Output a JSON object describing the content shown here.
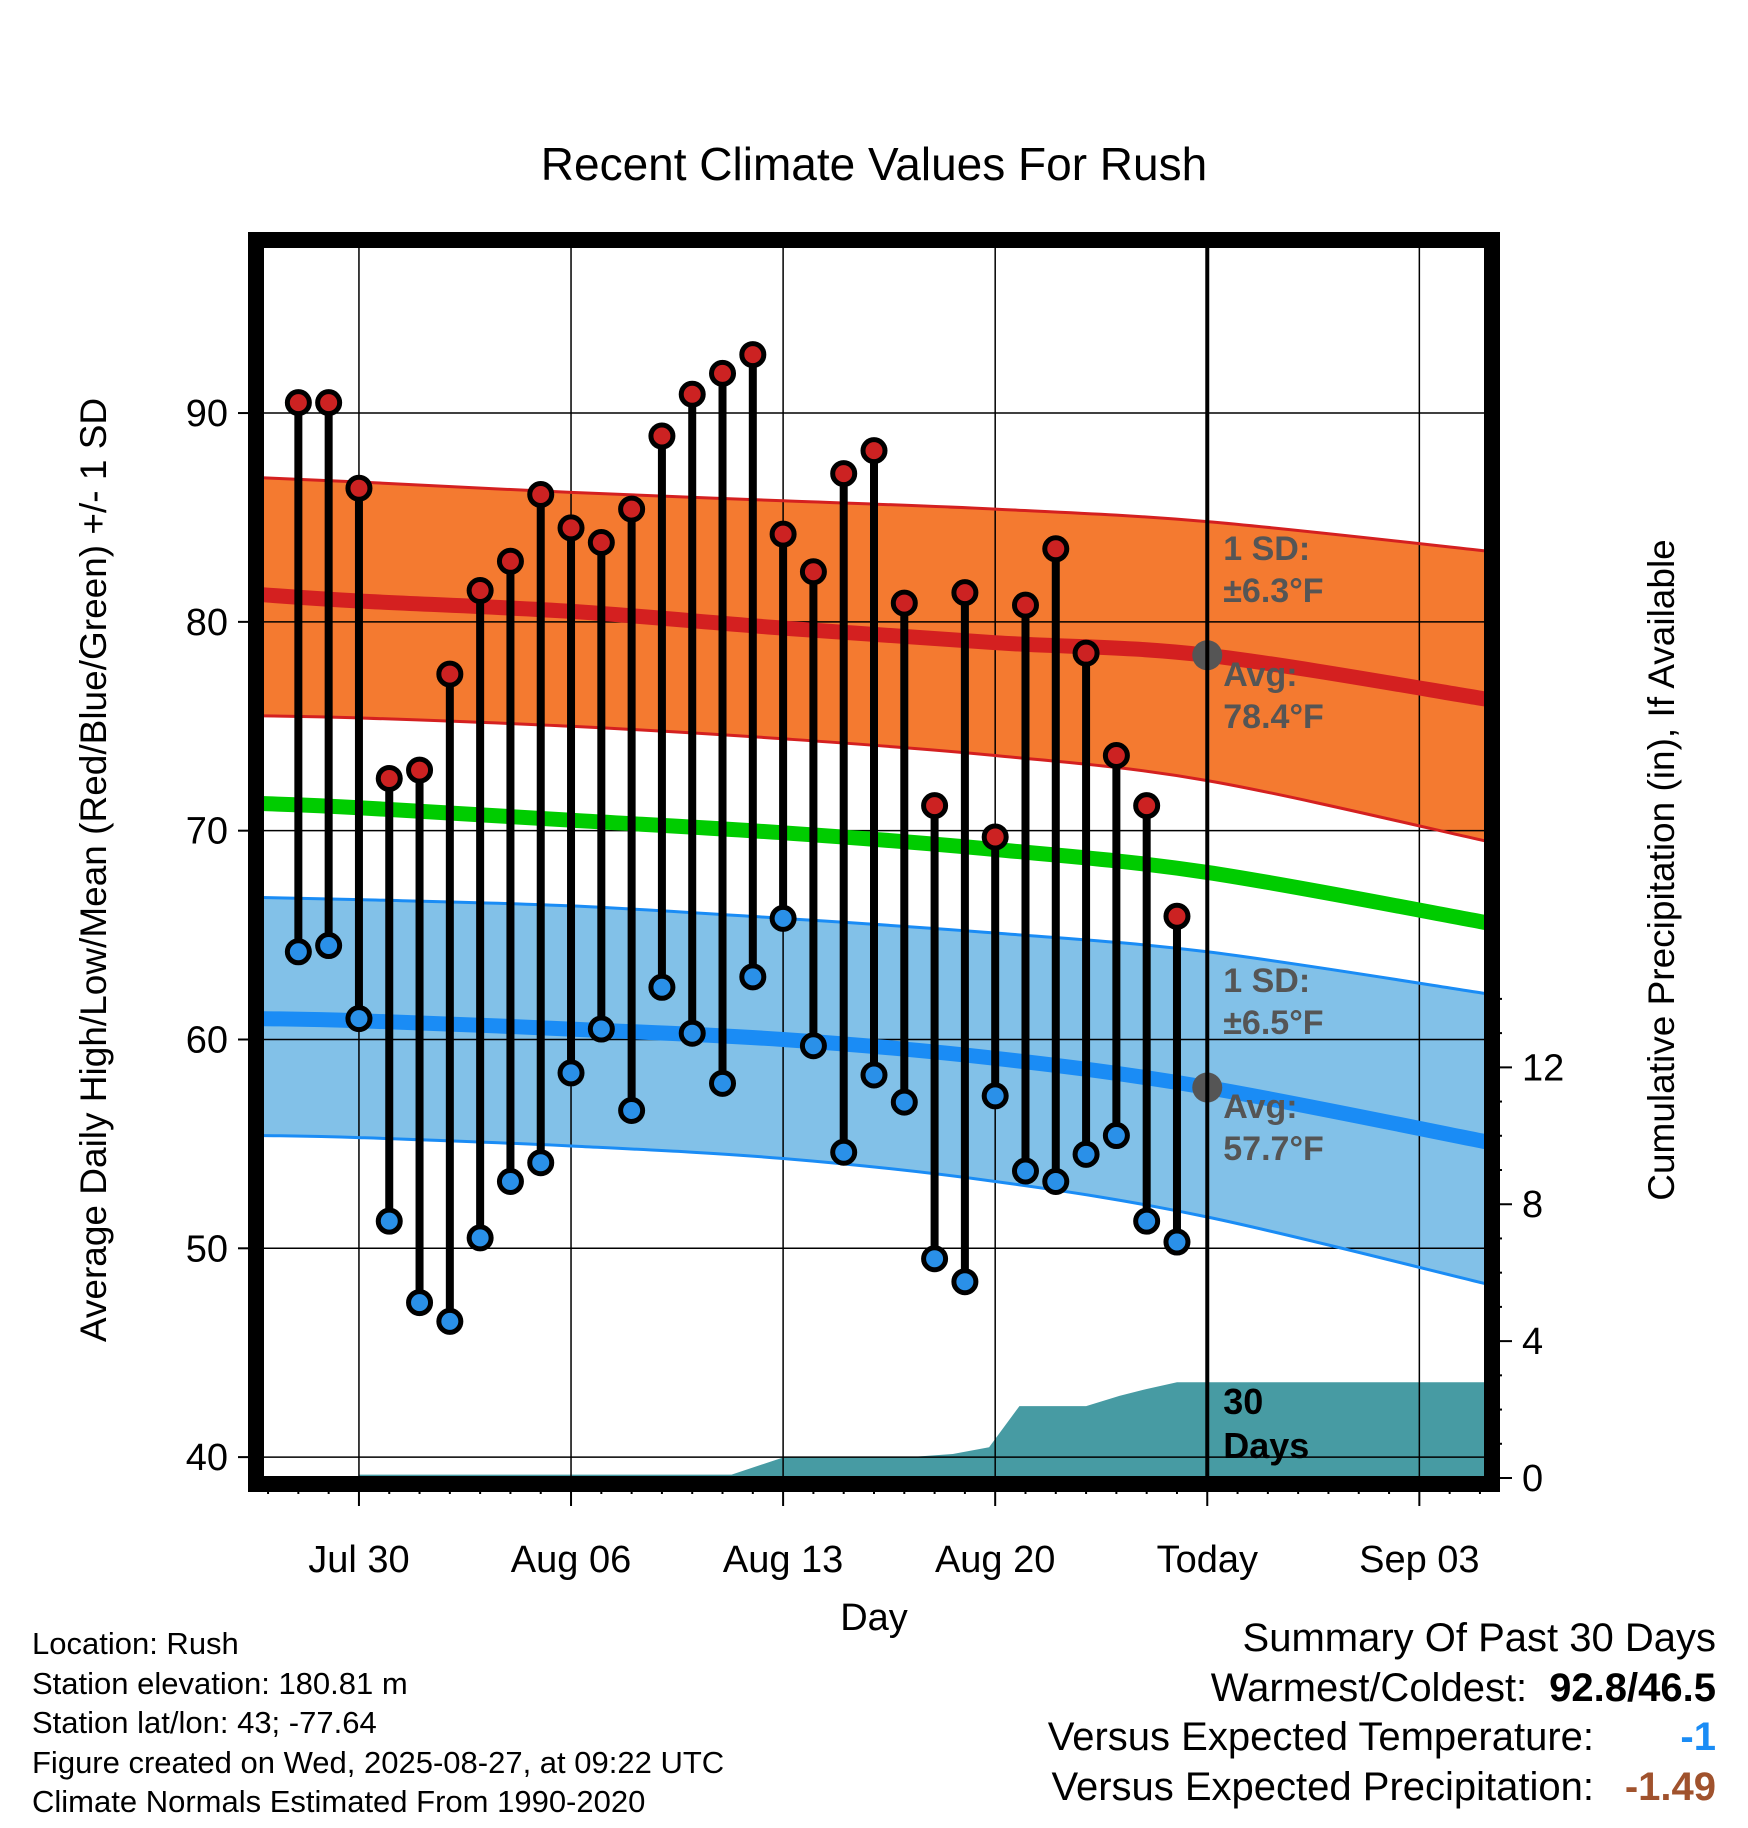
{
  "chart_data": {
    "type": "line",
    "title": "Recent Climate Values For Rush",
    "xlabel": "Day",
    "ylabel": "Average Daily High/Low/Mean (Red/Blue/Green) +/- 1 SD",
    "y2label": "Cumulative Precipitation (in), If Available",
    "ylim": [
      39,
      98
    ],
    "y2lim": [
      0,
      36
    ],
    "yticks": [
      "40",
      "50",
      "60",
      "70",
      "80",
      "90"
    ],
    "y2ticks": [
      "0",
      "4",
      "8",
      "12"
    ],
    "xlim": [
      -3.2,
      37.2
    ],
    "x_ticks": [
      {
        "label": "Jul 30",
        "x": 0
      },
      {
        "label": "Aug 06",
        "x": 7
      },
      {
        "label": "Aug 13",
        "x": 14
      },
      {
        "label": "Aug 20",
        "x": 21
      },
      {
        "label": "Today",
        "x": 28
      },
      {
        "label": "Sep 03",
        "x": 35
      }
    ],
    "grid": true,
    "x_days": [
      -2,
      -1,
      0,
      1,
      2,
      3,
      4,
      5,
      6,
      7,
      8,
      9,
      10,
      11,
      12,
      13,
      14,
      15,
      16,
      17,
      18,
      19,
      20,
      21,
      22,
      23,
      24,
      25,
      26,
      27
    ],
    "highs": [
      90.5,
      90.5,
      86.4,
      72.5,
      72.9,
      77.5,
      81.5,
      82.9,
      86.1,
      84.5,
      83.8,
      85.4,
      88.9,
      90.9,
      91.9,
      92.8,
      84.2,
      82.4,
      87.1,
      88.2,
      80.9,
      71.2,
      81.4,
      69.7,
      80.8,
      83.5,
      78.5,
      73.6,
      71.2,
      65.9
    ],
    "lows": [
      64.2,
      64.5,
      61.0,
      51.3,
      47.4,
      46.5,
      50.5,
      53.2,
      54.1,
      58.4,
      60.5,
      56.6,
      62.5,
      60.3,
      57.9,
      63.0,
      65.8,
      59.7,
      54.6,
      58.3,
      57.0,
      49.5,
      48.4,
      57.3,
      53.7,
      53.2,
      54.5,
      55.4,
      51.3,
      50.3
    ],
    "normal_x": [
      -3.2,
      0,
      7,
      14,
      21,
      28,
      37.2
    ],
    "normal_high": [
      81.3,
      81.0,
      80.5,
      79.7,
      79.0,
      78.4,
      76.3
    ],
    "normal_high_sd": 6.3,
    "normal_high_sd_upper": [
      86.9,
      86.7,
      86.2,
      85.8,
      85.4,
      84.8,
      83.4
    ],
    "normal_high_sd_lower": [
      75.5,
      75.4,
      75.0,
      74.4,
      73.6,
      72.4,
      69.5
    ],
    "normal_mean": [
      71.3,
      71.1,
      70.5,
      69.9,
      69.1,
      68.0,
      65.6
    ],
    "normal_low": [
      61.0,
      60.9,
      60.5,
      60.0,
      59.1,
      57.7,
      55.1
    ],
    "normal_low_sd": 6.5,
    "normal_low_sd_upper": [
      66.8,
      66.7,
      66.4,
      65.8,
      65.1,
      64.2,
      62.2
    ],
    "normal_low_sd_lower": [
      55.4,
      55.3,
      54.9,
      54.3,
      53.2,
      51.5,
      48.3
    ],
    "precip_x": [
      0,
      12.3,
      14,
      18,
      19.6,
      20.8,
      21.8,
      24,
      25.1,
      26,
      27,
      28,
      37.2
    ],
    "precip_cum": [
      0.1,
      0.1,
      0.6,
      0.6,
      0.7,
      0.9,
      2.1,
      2.1,
      2.4,
      2.6,
      2.8,
      2.8,
      2.8
    ],
    "annotations": {
      "high_sd_label": "1 SD:",
      "high_sd_value": "±6.3°F",
      "high_avg_label": "Avg:",
      "high_avg_value": "78.4°F",
      "low_sd_label": "1 SD:",
      "low_sd_value": "±6.5°F",
      "low_avg_label": "Avg:",
      "low_avg_value": "57.7°F",
      "precip_label_1": "30",
      "precip_label_2": "Days"
    },
    "colors": {
      "high_band": "#f47a30",
      "high_line": "#d42020",
      "low_band": "#82c1e8",
      "low_line": "#1a8cf5",
      "mean_line": "#00cc00",
      "precip": "#479ba3",
      "high_marker": "#cc2222",
      "low_marker": "#2a90e8",
      "annotation": "#555555"
    }
  },
  "footer": {
    "location": "Location: Rush",
    "elevation": "Station elevation: 180.81 m",
    "latlon": "Station lat/lon: 43; -77.64",
    "created": "Figure created on Wed, 2025-08-27, at 09:22 UTC",
    "normals": "Climate Normals Estimated From 1990-2020"
  },
  "summary": {
    "title": "Summary Of Past 30 Days",
    "warmest_coldest_label": "Warmest/Coldest:",
    "warmest_coldest_value": "92.8/46.5",
    "temp_label": "Versus Expected Temperature:",
    "temp_value": "-1",
    "temp_color": "#1a8cf5",
    "precip_label": "Versus Expected Precipitation:",
    "precip_value": "-1.49",
    "precip_color": "#a0522d"
  }
}
